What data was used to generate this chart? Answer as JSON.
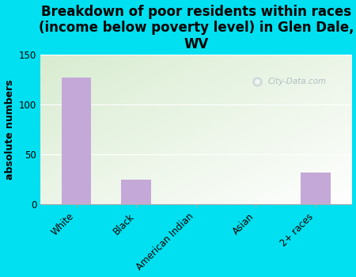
{
  "categories": [
    "White",
    "Black",
    "American Indian",
    "Asian",
    "2+ races"
  ],
  "values": [
    127,
    25,
    0,
    0,
    32
  ],
  "bar_color": "#c4a8d8",
  "title": "Breakdown of poor residents within races\n(income below poverty level) in Glen Dale,\nWV",
  "ylabel": "absolute numbers",
  "ylim": [
    0,
    150
  ],
  "yticks": [
    0,
    50,
    100,
    150
  ],
  "bg_outer": "#00e0f0",
  "bg_plot_color1": "#d8ecd0",
  "bg_plot_color2": "#ffffff",
  "watermark": "City-Data.com",
  "title_fontsize": 12,
  "ylabel_fontsize": 9,
  "tick_fontsize": 8.5
}
